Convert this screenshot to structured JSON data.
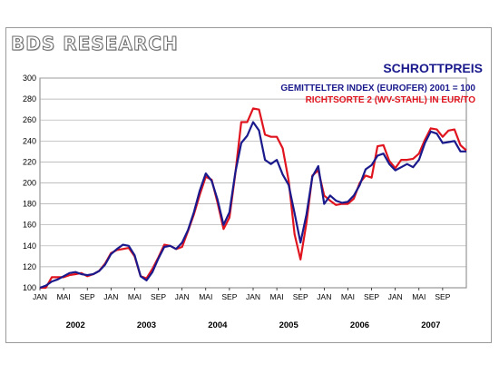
{
  "header": {
    "logo_text": "BDS RESEARCH"
  },
  "chart_data": {
    "type": "line",
    "title": "SCHROTTPREIS",
    "ylim": [
      100,
      300
    ],
    "yticks": [
      100,
      120,
      140,
      160,
      180,
      200,
      220,
      240,
      260,
      280,
      300
    ],
    "grid": true,
    "legend_position": "top-right",
    "xtick_labels": [
      "JAN",
      "MAI",
      "SEP",
      "JAN",
      "MAI",
      "SEP",
      "JAN",
      "MAI",
      "SEP",
      "JAN",
      "MAI",
      "SEP",
      "JAN",
      "MAI",
      "SEP",
      "JAN",
      "MAI",
      "SEP"
    ],
    "year_labels": [
      "2002",
      "2003",
      "2004",
      "2005",
      "2006",
      "2007"
    ],
    "series": [
      {
        "name": "GEMITTELTER INDEX (EUROFER)  2001 = 100",
        "color": "#1a1a8c",
        "values": [
          100,
          102,
          106,
          108,
          111,
          114,
          115,
          113,
          112,
          113,
          116,
          122,
          132,
          137,
          141,
          140,
          131,
          111,
          107,
          115,
          128,
          139,
          140,
          137,
          143,
          155,
          172,
          193,
          209,
          202,
          184,
          160,
          172,
          210,
          238,
          245,
          258,
          250,
          222,
          218,
          222,
          208,
          198,
          171,
          143,
          170,
          206,
          216,
          180,
          188,
          183,
          181,
          182,
          188,
          198,
          213,
          217,
          226,
          228,
          218,
          212,
          215,
          218,
          215,
          222,
          238,
          249,
          247,
          238,
          239,
          240,
          230,
          230
        ]
      },
      {
        "name": "RICHTSORTE 2 (WV-STAHL) IN EUR/TO",
        "color": "#e0141e",
        "values": [
          100,
          100,
          110,
          110,
          110,
          112,
          113,
          114,
          111,
          113,
          116,
          123,
          133,
          136,
          137,
          138,
          130,
          111,
          109,
          118,
          129,
          141,
          140,
          137,
          139,
          154,
          170,
          189,
          206,
          203,
          181,
          156,
          167,
          209,
          258,
          258,
          271,
          270,
          246,
          244,
          244,
          233,
          202,
          151,
          127,
          162,
          207,
          212,
          188,
          183,
          179,
          180,
          180,
          185,
          200,
          207,
          205,
          235,
          236,
          221,
          214,
          222,
          222,
          223,
          228,
          241,
          252,
          251,
          244,
          250,
          251,
          236,
          231
        ]
      }
    ]
  }
}
